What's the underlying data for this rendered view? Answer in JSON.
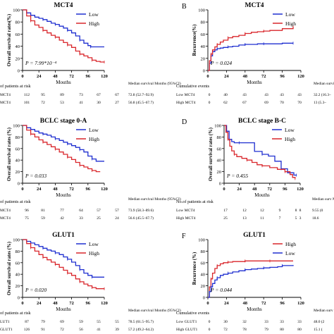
{
  "colors": {
    "low": "#1f2fd0",
    "high": "#d9262b",
    "axis": "#000000"
  },
  "panels": [
    {
      "letter": "",
      "title": "MCT4",
      "ylabel": "Overall survival rates(%)",
      "xlabel": "Mouths",
      "pvalue": "P = 7.99*10⁻⁴",
      "risk_header": "of patients at risk",
      "extra_header": "Median survival Months (95%CI)",
      "risk_rows": [
        {
          "label": "MCT4",
          "values": [
            "112",
            "95",
            "89",
            "73",
            "67",
            "67"
          ],
          "extra": "72.8 (52.7–92.9)"
        },
        {
          "label": "MCT4",
          "values": [
            "101",
            "72",
            "53",
            "41",
            "30",
            "27"
          ],
          "extra": "56.8 (45.5–67.7)"
        }
      ]
    },
    {
      "letter": "B",
      "title": "MCT4",
      "ylabel": "Recurrence(%)",
      "xlabel": "Months",
      "pvalue": "P = 0.024",
      "risk_header": "Cumulative events",
      "extra_header": "Median survi Months (95",
      "risk_rows": [
        {
          "label": "Low MCT4",
          "values": [
            "0",
            "40",
            "43",
            "43",
            "43",
            "43"
          ],
          "extra": "32.2 (16.3–"
        },
        {
          "label": "High MCT4",
          "values": [
            "0",
            "62",
            "67",
            "69",
            "70",
            "70"
          ],
          "extra": "13 (5.3–"
        }
      ]
    },
    {
      "letter": "",
      "title": "BCLC stage 0-A",
      "ylabel": "Overall survival rates (%)",
      "xlabel": "Mouths",
      "pvalue": "P = 0.033",
      "risk_header": "of patients at risk",
      "extra_header": "Median survival Months (95%CI)",
      "risk_rows": [
        {
          "label": "MCT4",
          "values": [
            "96",
            "81",
            "77",
            "64",
            "57",
            "57"
          ],
          "extra": "73.9 (58.3–89.6)"
        },
        {
          "label": "MCT4",
          "values": [
            "75",
            "59",
            "42",
            "33",
            "25",
            "24"
          ],
          "extra": "56.6 (45.5–67.7)"
        }
      ]
    },
    {
      "letter": "D",
      "title": "BCLC stage B-C",
      "ylabel": "Overall survival rates (%)",
      "xlabel": "Mouths",
      "pvalue": "P = 0.455",
      "risk_header": "No.of patients at risk",
      "extra_header": "Median surv Months (9",
      "risk_rows": [
        {
          "label": "Low MCT4",
          "values": [
            "17",
            "12",
            "12",
            "9",
            "8",
            "8"
          ],
          "extra": "9.55 (0"
        },
        {
          "label": "High MCT4",
          "values": [
            "25",
            "13",
            "11",
            "7",
            "5",
            "3"
          ],
          "extra": "18.6"
        }
      ]
    },
    {
      "letter": "",
      "title": "GLUT1",
      "ylabel": "Overall survival rates (%)",
      "xlabel": "Mouths",
      "pvalue": "P = 0.020",
      "risk_header": "of patients at risk",
      "extra_header": "Median survival Months (95%CI)",
      "risk_rows": [
        {
          "label": "LUT1",
          "values": [
            "87",
            "79",
            "69",
            "59",
            "55",
            "55"
          ],
          "extra": "78.5 (61.5–95.7)"
        },
        {
          "label": "GLUT1",
          "values": [
            "126",
            "91",
            "72",
            "56",
            "41",
            "39"
          ],
          "extra": "57.2 (49.2–64.2)"
        }
      ]
    },
    {
      "letter": "F",
      "title": "GLUT1",
      "ylabel": "Recurrence (%)",
      "xlabel": "Months",
      "pvalue": "P = 0.044",
      "risk_header": "Cumulative events",
      "extra_header": "Median surv Months (95",
      "risk_rows": [
        {
          "label": "Low GLUT1",
          "values": [
            "0",
            "30",
            "32",
            "33",
            "33",
            "33"
          ],
          "extra": "48.0 (2"
        },
        {
          "label": "High GLUT1",
          "values": [
            "0",
            "72",
            "78",
            "79",
            "80",
            "80"
          ],
          "extra": "15.1 ("
        }
      ]
    }
  ],
  "chart_data": [
    {
      "type": "line",
      "title": "MCT4",
      "xlabel": "Mouths",
      "ylabel": "Overall survival rates(%)",
      "xlim": [
        0,
        120
      ],
      "ylim": [
        0,
        100
      ],
      "xticks": [
        0,
        24,
        48,
        72,
        96,
        120
      ],
      "yticks": [
        0,
        20,
        40,
        60,
        80,
        100
      ],
      "legend": {
        "position": "top-right",
        "entries": [
          "Low",
          "High"
        ]
      },
      "series": [
        {
          "name": "Low",
          "x": [
            0,
            6,
            12,
            18,
            24,
            30,
            36,
            42,
            48,
            54,
            60,
            66,
            72,
            78,
            84,
            90,
            96,
            100,
            108,
            120
          ],
          "y": [
            100,
            95,
            91,
            88,
            86,
            84,
            81,
            78,
            76,
            73,
            70,
            66,
            62,
            57,
            50,
            45,
            41,
            39,
            39,
            39
          ]
        },
        {
          "name": "High",
          "x": [
            0,
            6,
            12,
            18,
            24,
            30,
            36,
            42,
            48,
            54,
            60,
            66,
            72,
            78,
            84,
            90,
            96,
            102,
            108,
            114,
            120
          ],
          "y": [
            100,
            90,
            82,
            75,
            71,
            66,
            62,
            58,
            55,
            50,
            46,
            42,
            38,
            32,
            27,
            24,
            21,
            17,
            15,
            14,
            14
          ]
        }
      ]
    },
    {
      "type": "line",
      "title": "MCT4",
      "xlabel": "Months",
      "ylabel": "Recurrence(%)",
      "xlim": [
        0,
        120
      ],
      "ylim": [
        0,
        100
      ],
      "xticks": [
        0,
        24,
        48,
        72,
        96,
        120
      ],
      "yticks": [
        0,
        20,
        40,
        60,
        80,
        100
      ],
      "legend": {
        "position": "top-right",
        "entries": [
          "Low",
          "High"
        ]
      },
      "series": [
        {
          "name": "Low",
          "x": [
            0,
            2,
            4,
            6,
            9,
            12,
            16,
            20,
            26,
            32,
            40,
            48,
            56,
            64,
            72,
            80,
            96,
            110
          ],
          "y": [
            0,
            12,
            24,
            31,
            34,
            36,
            37,
            38,
            39,
            40,
            42,
            43,
            43,
            44,
            44,
            44,
            45,
            45
          ]
        },
        {
          "name": "High",
          "x": [
            0,
            2,
            4,
            6,
            9,
            12,
            16,
            20,
            26,
            32,
            40,
            48,
            56,
            64,
            72,
            80,
            96,
            110
          ],
          "y": [
            0,
            16,
            27,
            34,
            39,
            43,
            47,
            50,
            54,
            56,
            58,
            61,
            63,
            64,
            65,
            66,
            69,
            72
          ]
        }
      ]
    },
    {
      "type": "line",
      "title": "BCLC stage 0-A",
      "xlabel": "Mouths",
      "ylabel": "Overall survival rates (%)",
      "xlim": [
        0,
        120
      ],
      "ylim": [
        0,
        100
      ],
      "xticks": [
        0,
        24,
        48,
        72,
        96,
        120
      ],
      "yticks": [
        0,
        20,
        40,
        60,
        80,
        100
      ],
      "legend": {
        "position": "top-right",
        "entries": [
          "Low",
          "High"
        ]
      },
      "series": [
        {
          "name": "Low",
          "x": [
            0,
            6,
            12,
            18,
            24,
            30,
            36,
            42,
            48,
            54,
            60,
            66,
            72,
            78,
            84,
            90,
            96,
            102,
            108,
            120
          ],
          "y": [
            100,
            96,
            93,
            90,
            87,
            85,
            83,
            80,
            77,
            74,
            71,
            68,
            65,
            62,
            58,
            54,
            47,
            42,
            38,
            38
          ]
        },
        {
          "name": "High",
          "x": [
            0,
            6,
            12,
            18,
            24,
            30,
            36,
            42,
            48,
            54,
            60,
            66,
            72,
            78,
            84,
            90,
            96,
            102,
            108,
            114
          ],
          "y": [
            100,
            92,
            85,
            80,
            75,
            71,
            67,
            63,
            59,
            54,
            50,
            45,
            41,
            36,
            31,
            28,
            25,
            22,
            20,
            20
          ]
        }
      ]
    },
    {
      "type": "line",
      "title": "BCLC stage B-C",
      "xlabel": "Mouths",
      "ylabel": "Overall survival rates (%)",
      "xlim": [
        0,
        120
      ],
      "ylim": [
        0,
        100
      ],
      "xticks": [
        0,
        24,
        48,
        72,
        96,
        120
      ],
      "yticks": [
        0,
        20,
        40,
        60,
        80,
        100
      ],
      "legend": {
        "position": "top-right",
        "entries": [
          "Low",
          "High"
        ]
      },
      "series": [
        {
          "name": "Low",
          "x": [
            0,
            4,
            8,
            12,
            16,
            24,
            36,
            48,
            60,
            70,
            80,
            90,
            100,
            110,
            114
          ],
          "y": [
            100,
            90,
            76,
            72,
            70,
            70,
            70,
            55,
            50,
            47,
            38,
            25,
            18,
            14,
            14
          ]
        },
        {
          "name": "High",
          "x": [
            0,
            3,
            6,
            9,
            12,
            16,
            20,
            28,
            36,
            44,
            52,
            60,
            72,
            84,
            96,
            104,
            108,
            112
          ],
          "y": [
            100,
            88,
            76,
            64,
            56,
            50,
            46,
            43,
            40,
            36,
            32,
            30,
            27,
            24,
            20,
            15,
            10,
            8
          ]
        }
      ]
    },
    {
      "type": "line",
      "title": "GLUT1",
      "xlabel": "Mouths",
      "ylabel": "Overall survival rates (%)",
      "xlim": [
        0,
        120
      ],
      "ylim": [
        0,
        100
      ],
      "xticks": [
        0,
        24,
        48,
        72,
        96,
        120
      ],
      "yticks": [
        0,
        20,
        40,
        60,
        80,
        100
      ],
      "legend": {
        "position": "top-right",
        "entries": [
          "Low",
          "High"
        ]
      },
      "series": [
        {
          "name": "Low",
          "x": [
            0,
            6,
            12,
            18,
            24,
            30,
            36,
            42,
            48,
            54,
            60,
            66,
            72,
            78,
            84,
            90,
            96,
            102,
            108,
            120
          ],
          "y": [
            100,
            97,
            94,
            91,
            88,
            85,
            82,
            80,
            77,
            74,
            70,
            66,
            61,
            55,
            48,
            42,
            38,
            35,
            35,
            35
          ]
        },
        {
          "name": "High",
          "x": [
            0,
            6,
            12,
            18,
            24,
            30,
            36,
            42,
            48,
            54,
            60,
            66,
            72,
            78,
            84,
            90,
            96,
            102,
            108,
            114,
            120
          ],
          "y": [
            100,
            93,
            86,
            80,
            74,
            69,
            65,
            61,
            57,
            52,
            47,
            42,
            38,
            32,
            27,
            23,
            20,
            17,
            15,
            15,
            15
          ]
        }
      ]
    },
    {
      "type": "line",
      "title": "GLUT1",
      "xlabel": "Months",
      "ylabel": "Recurrence (%)",
      "xlim": [
        0,
        120
      ],
      "ylim": [
        0,
        100
      ],
      "xticks": [
        0,
        24,
        48,
        72,
        96,
        120
      ],
      "yticks": [
        0,
        20,
        40,
        60,
        80,
        100
      ],
      "legend": {
        "position": "top-right",
        "entries": [
          "High",
          "Low"
        ]
      },
      "series": [
        {
          "name": "High",
          "x": [
            0,
            2,
            4,
            6,
            9,
            12,
            16,
            20,
            26,
            32,
            40,
            48,
            56,
            64,
            80,
            96,
            110
          ],
          "y": [
            0,
            18,
            32,
            42,
            50,
            55,
            58,
            60,
            61,
            62,
            62,
            63,
            63,
            63,
            63,
            63,
            63
          ]
        },
        {
          "name": "Low",
          "x": [
            0,
            2,
            4,
            6,
            9,
            12,
            16,
            20,
            26,
            32,
            40,
            48,
            56,
            64,
            72,
            80,
            90,
            96,
            110
          ],
          "y": [
            0,
            10,
            18,
            24,
            30,
            34,
            38,
            40,
            42,
            44,
            46,
            48,
            49,
            50,
            51,
            52,
            53,
            55,
            56
          ]
        }
      ]
    }
  ]
}
